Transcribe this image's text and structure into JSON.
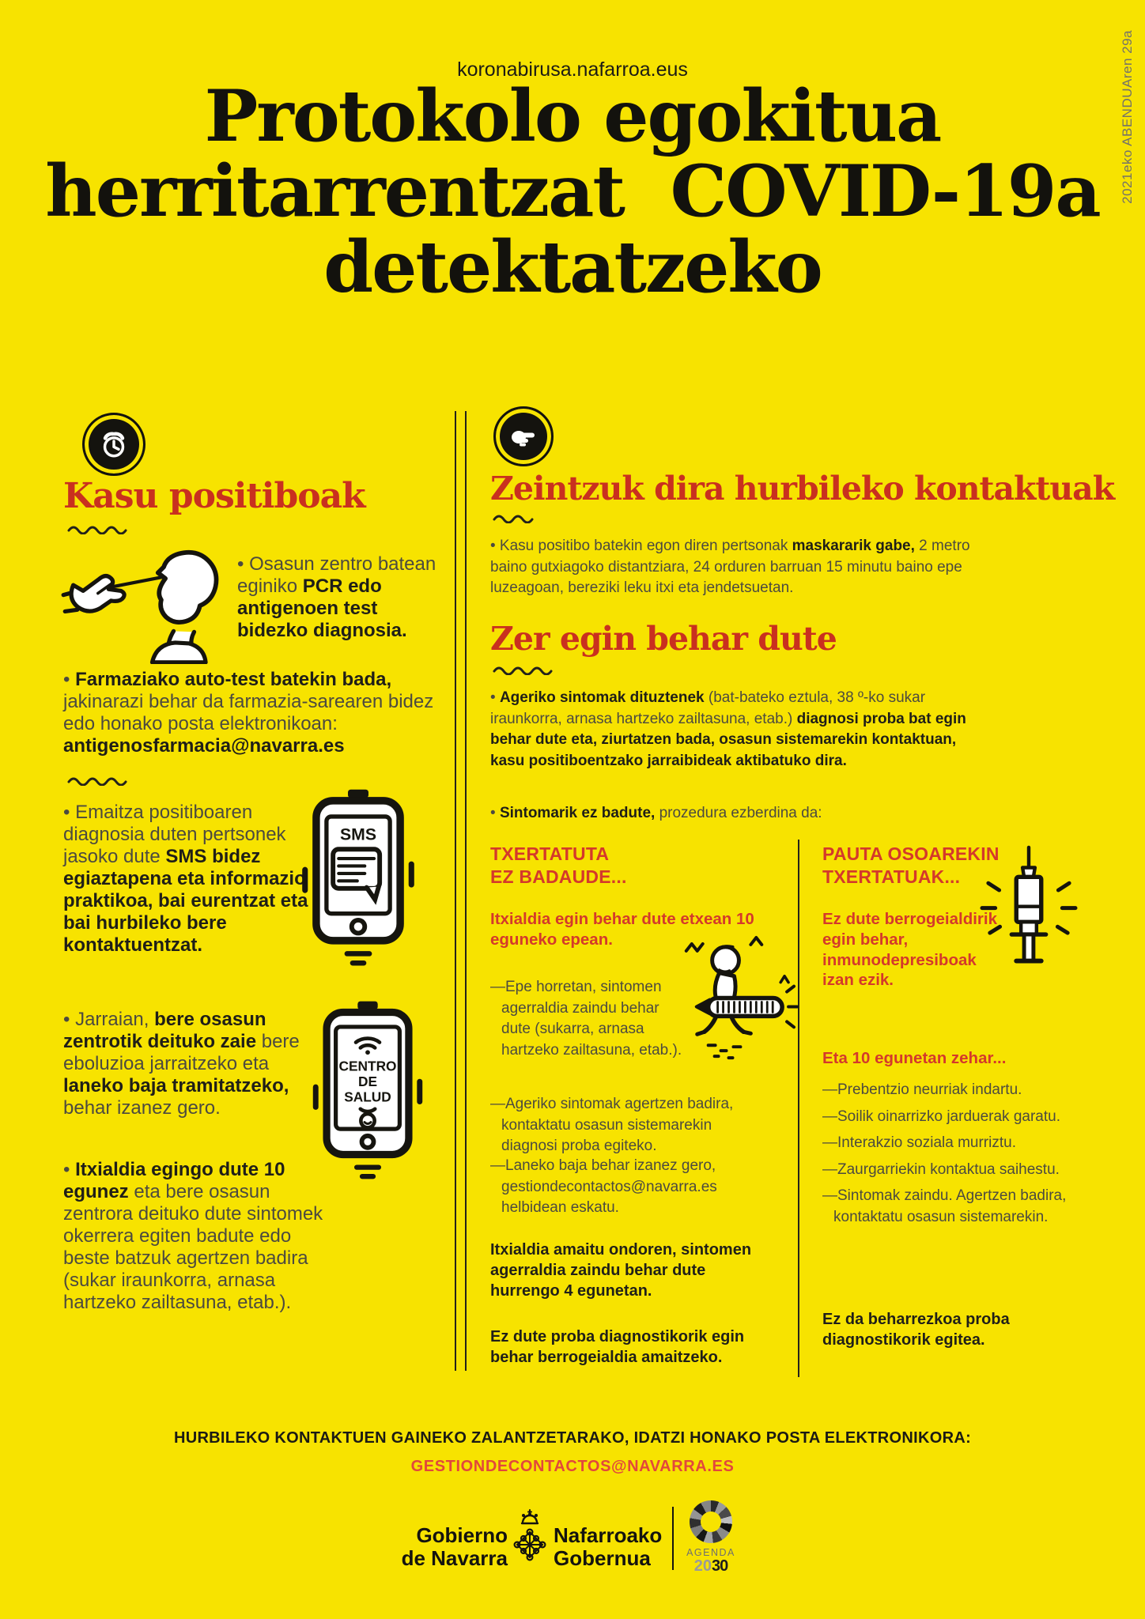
{
  "colors": {
    "background": "#F7E300",
    "heading_red": "#C9301F",
    "accent_red": "#D4392B",
    "email_red": "#E2473C",
    "ink": "#16150F",
    "body_gray": "#4C4A40"
  },
  "header": {
    "site_url": "koronabirusa.nafarroa.eus",
    "title_lines": [
      "Protokolo egokitua",
      "herritarrentzat  COVID-19a",
      "detektatzeko"
    ],
    "side_date": "2021eko ABENDUAren 29a"
  },
  "positives": {
    "heading": "Kasu positiboak",
    "diagnosis_bullet": [
      {
        "t": "• Osasun zentro batean eginiko "
      },
      {
        "t": "PCR edo antigenoen test bidezko diagnosia.",
        "b": true
      }
    ],
    "pharmacy_bullet": [
      {
        "t": "• "
      },
      {
        "t": "Farmaziako auto-test batekin bada,",
        "b": true
      },
      {
        "t": " jakinarazi behar da farmazia-sarearen bidez edo honako posta elektronikoan: "
      },
      {
        "t": "antigenosfarmacia@navarra.es",
        "b": true
      }
    ],
    "sms_bullet": [
      {
        "t": "• Emaitza positiboaren diagnosia duten pertsonek jasoko dute "
      },
      {
        "t": "SMS bidez egiaztapena eta informazio praktikoa, bai eurentzat eta bai hurbileko bere kontaktuentzat.",
        "b": true
      }
    ],
    "sms_phone_label": "SMS",
    "followup_bullet": [
      {
        "t": "• Jarraian, "
      },
      {
        "t": "bere osasun zentrotik deituko zaie",
        "b": true
      },
      {
        "t": " bere eboluzioa jarraitzeko eta "
      },
      {
        "t": "laneko baja tramitatzeko,",
        "b": true
      },
      {
        "t": " behar izanez gero."
      }
    ],
    "health_center_phone_label": [
      "CENTRO",
      "DE",
      "SALUD"
    ],
    "isolation_bullet": [
      {
        "t": "• "
      },
      {
        "t": "Itxialdia egingo dute 10 egunez",
        "b": true
      },
      {
        "t": " eta bere osasun zentrora deituko dute sintomek okerrera egiten badute edo beste batzuk agertzen badira (sukar iraunkorra, arnasa hartzeko zailtasuna, etab.)."
      }
    ]
  },
  "contacts": {
    "heading": "Zeintzuk dira hurbileko kontaktuak",
    "definition_bullet": [
      {
        "t": "• Kasu positibo batekin egon diren pertsonak "
      },
      {
        "t": "maskararik gabe,",
        "b": true
      },
      {
        "t": " 2 metro baino gutxiagoko distantziara, 24 orduren barruan 15 minutu baino epe luzeagoan, bereziki leku itxi eta jendetsuetan."
      }
    ],
    "what_heading": "Zer egin behar dute",
    "symptoms_bullet": [
      {
        "t": "• "
      },
      {
        "t": "Ageriko sintomak dituztenek",
        "b": true
      },
      {
        "t": " (bat-bateko eztula, 38 º-ko sukar iraunkorra, arnasa hartzeko zailtasuna, etab.) "
      },
      {
        "t": "diagnosi proba bat egin behar dute eta, ziurtatzen bada, osasun sistemarekin kontaktuan, kasu positiboentzako jarraibideak aktibatuko dira.",
        "b": true
      }
    ],
    "no_symptoms_bullet": [
      {
        "t": "• "
      },
      {
        "t": "Sintomarik ez badute,",
        "b": true
      },
      {
        "t": " prozedura ezberdina da:"
      }
    ],
    "unvaccinated": {
      "heading": "TXERTATUTA\nEZ BADAUDE...",
      "lead": "Itxialdia egin behar dute etxean 10 eguneko epean.",
      "items": [
        "—Epe horretan, sintomen agerraldia zaindu behar dute (sukarra, arnasa hartzeko zailtasuna, etab.).",
        "—Ageriko sintomak agertzen badira, kontaktatu osasun sistemarekin diagnosi proba egiteko.",
        "—Laneko baja behar izanez gero, gestiondecontactos@navarra.es helbidean eskatu."
      ],
      "after_note1": "Itxialdia amaitu ondoren, sintomen agerraldia zaindu behar dute hurrengo 4 egunetan.",
      "after_note2": "Ez dute proba diagnostikorik egin behar berrogeialdia amaitzeko."
    },
    "vaccinated": {
      "heading": "PAUTA OSOAREKIN\nTXERTATUAK...",
      "lead": "Ez dute berrogeialdirik egin behar, inmunodepresiboak izan ezik.",
      "during_heading": "Eta 10 egunetan zehar...",
      "items": [
        "—Prebentzio neurriak indartu.",
        "—Soilik oinarrizko jarduerak garatu.",
        "—Interakzio soziala murriztu.",
        "—Zaurgarriekin kontaktua saihestu.",
        "—Sintomak zaindu. Agertzen badira, kontaktatu osasun sistemarekin."
      ],
      "after_note": "Ez da beharrezkoa proba diagnostikorik egitea."
    }
  },
  "footer": {
    "note": "HURBILEKO KONTAKTUEN GAINEKO ZALANTZETARAKO, IDATZI HONAKO POSTA ELEKTRONIKORA:",
    "email": "GESTIONDECONTACTOS@NAVARRA.ES",
    "gov_logo_es": "Gobierno\nde Navarra",
    "gov_logo_eu": "Nafarroako\nGobernua",
    "agenda_label": "AGENDA",
    "agenda_year_light": "20",
    "agenda_year_dark": "30"
  }
}
